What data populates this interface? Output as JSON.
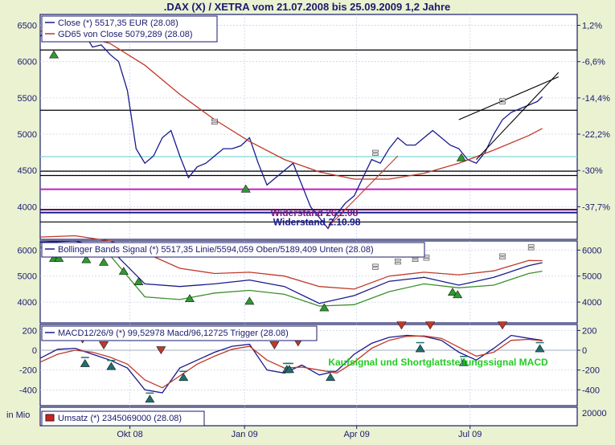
{
  "title": ".DAX (X) / XETRA vom 21.07.2008 bis 25.09.2009 1,2 Jahre",
  "xaxis": {
    "x_range": [
      "2008-07-21",
      "2009-09-25"
    ],
    "ticks": [
      {
        "date": "2008-10-01",
        "label": "Okt 08"
      },
      {
        "date": "2009-01-01",
        "label": "Jan 09"
      },
      {
        "date": "2009-04-01",
        "label": "Apr 09"
      },
      {
        "date": "2009-07-01",
        "label": "Jul 09"
      }
    ]
  },
  "chart_data": [
    {
      "type": "line",
      "panel": "price",
      "legend": [
        "Close (*) 5517,35 EUR (28.08)",
        "GD65 von Close 5079,289 (28.08)"
      ],
      "ylim": [
        3550,
        6650
      ],
      "left_ticks": [
        "6500",
        "6000",
        "5500",
        "5000",
        "4500",
        "4000"
      ],
      "left_tick_values": [
        6500,
        6000,
        5500,
        5000,
        4500,
        4000
      ],
      "right_ticks": [
        "1,2%",
        "-6,6%",
        "-14,4%",
        "-22,2%",
        "-30%",
        "-37,7%"
      ],
      "right_tick_values": [
        6500,
        6000,
        5500,
        5000,
        4500,
        4000
      ],
      "series": [
        {
          "name": "Close",
          "color": "#1a1a8c",
          "x": [
            "2008-07-21",
            "2008-07-28",
            "2008-08-04",
            "2008-08-11",
            "2008-08-18",
            "2008-08-25",
            "2008-09-01",
            "2008-09-08",
            "2008-09-15",
            "2008-09-22",
            "2008-09-29",
            "2008-10-06",
            "2008-10-13",
            "2008-10-20",
            "2008-10-27",
            "2008-11-03",
            "2008-11-10",
            "2008-11-17",
            "2008-11-24",
            "2008-12-01",
            "2008-12-08",
            "2008-12-15",
            "2008-12-22",
            "2008-12-29",
            "2009-01-05",
            "2009-01-12",
            "2009-01-19",
            "2009-01-26",
            "2009-02-02",
            "2009-02-09",
            "2009-02-16",
            "2009-02-23",
            "2009-03-02",
            "2009-03-09",
            "2009-03-16",
            "2009-03-23",
            "2009-03-30",
            "2009-04-06",
            "2009-04-13",
            "2009-04-20",
            "2009-04-27",
            "2009-05-04",
            "2009-05-11",
            "2009-05-18",
            "2009-05-25",
            "2009-06-01",
            "2009-06-08",
            "2009-06-15",
            "2009-06-22",
            "2009-06-29",
            "2009-07-06",
            "2009-07-13",
            "2009-07-20",
            "2009-07-27",
            "2009-08-03",
            "2009-08-10",
            "2009-08-17",
            "2009-08-24",
            "2009-08-28"
          ],
          "y": [
            6350,
            6450,
            6480,
            6500,
            6360,
            6400,
            6200,
            6230,
            6100,
            6000,
            5600,
            4800,
            4600,
            4700,
            4950,
            5050,
            4700,
            4400,
            4550,
            4600,
            4700,
            4800,
            4800,
            4840,
            4950,
            4600,
            4300,
            4400,
            4500,
            4600,
            4300,
            4000,
            3850,
            3700,
            3900,
            4050,
            4150,
            4400,
            4650,
            4600,
            4800,
            4950,
            4850,
            4850,
            4950,
            5050,
            4950,
            4850,
            4800,
            4650,
            4600,
            4750,
            5000,
            5200,
            5300,
            5350,
            5400,
            5450,
            5517
          ]
        },
        {
          "name": "GD65",
          "color": "#c0392b",
          "x": [
            "2008-07-21",
            "2008-08-18",
            "2008-09-15",
            "2008-10-13",
            "2008-11-10",
            "2008-12-08",
            "2009-01-05",
            "2009-02-02",
            "2009-03-02",
            "2009-03-30",
            "2009-04-27",
            "2009-05-25",
            "2009-06-22",
            "2009-07-20",
            "2009-08-17",
            "2009-08-28"
          ],
          "y": [
            6420,
            6380,
            6250,
            5950,
            5550,
            5200,
            4900,
            4650,
            4480,
            4380,
            4380,
            4460,
            4600,
            4780,
            4980,
            5079
          ]
        }
      ],
      "hlines": [
        {
          "y": 6160,
          "color": "#000000"
        },
        {
          "y": 5330,
          "color": "#000000"
        },
        {
          "y": 4690,
          "color": "#7fd6d6"
        },
        {
          "y": 4490,
          "color": "#000000"
        },
        {
          "y": 4430,
          "color": "#000000"
        },
        {
          "y": 4240,
          "color": "#c020c0"
        },
        {
          "y": 3960,
          "color": "#5a005a"
        },
        {
          "y": 3920,
          "color": "#1a1a8c"
        },
        {
          "y": 3790,
          "color": "#000000"
        }
      ],
      "trendlines": [
        {
          "x": [
            "2009-03-09",
            "2009-05-04"
          ],
          "y": [
            3720,
            4700
          ],
          "color": "#c0392b"
        },
        {
          "x": [
            "2009-07-06",
            "2009-09-10"
          ],
          "y": [
            4650,
            5850
          ],
          "color": "#000000"
        },
        {
          "x": [
            "2009-06-22",
            "2009-09-10"
          ],
          "y": [
            5200,
            5790
          ],
          "color": "#000000"
        }
      ],
      "annotations": [
        {
          "text": "Widerstand 26.2.08",
          "x": "2009-02-26",
          "y": 3925,
          "color": "#7a1a7a"
        },
        {
          "text": "Widerstand 2.10.98",
          "x": "2009-02-28",
          "y": 3800,
          "color": "#1a1a8c"
        }
      ],
      "buy_markers": [
        {
          "x": "2008-08-01",
          "y": 6100
        },
        {
          "x": "2009-01-02",
          "y": 4250
        },
        {
          "x": "2009-06-24",
          "y": 4680
        }
      ],
      "neutral_markers": [
        {
          "x": "2008-12-08",
          "y": 5170
        },
        {
          "x": "2009-04-16",
          "y": 4740
        },
        {
          "x": "2009-07-27",
          "y": 5450
        }
      ]
    },
    {
      "type": "line",
      "panel": "bollinger",
      "legend": [
        "Bollinger Bands Signal (*) 5517,35 Linie/5594,059 Oben/5189,409 Unten (28.08)"
      ],
      "ylim": [
        3200,
        6350
      ],
      "left_ticks": [
        "6000",
        "5000",
        "4000"
      ],
      "left_tick_values": [
        6000,
        5000,
        4000
      ],
      "right_ticks": [
        "6000",
        "5000",
        "4000"
      ],
      "right_tick_values": [
        6000,
        5000,
        4000
      ],
      "series": [
        {
          "name": "Linie",
          "color": "#1a1a8c",
          "x": [
            "2008-07-21",
            "2008-08-18",
            "2008-09-15",
            "2008-10-13",
            "2008-11-10",
            "2008-12-08",
            "2009-01-05",
            "2009-02-02",
            "2009-03-02",
            "2009-03-30",
            "2009-04-27",
            "2009-05-25",
            "2009-06-22",
            "2009-07-20",
            "2009-08-17",
            "2009-08-28"
          ],
          "y": [
            6300,
            6350,
            6050,
            4700,
            4600,
            4700,
            4850,
            4600,
            3950,
            4250,
            4800,
            4950,
            4650,
            4950,
            5400,
            5517
          ]
        },
        {
          "name": "Oben",
          "color": "#c0392b",
          "x": [
            "2008-07-21",
            "2008-08-18",
            "2008-09-15",
            "2008-10-13",
            "2008-11-10",
            "2008-12-08",
            "2009-01-05",
            "2009-02-02",
            "2009-03-02",
            "2009-03-30",
            "2009-04-27",
            "2009-05-25",
            "2009-06-22",
            "2009-07-20",
            "2009-08-17",
            "2009-08-28"
          ],
          "y": [
            6500,
            6550,
            6350,
            5900,
            5300,
            5100,
            5150,
            5000,
            4600,
            4500,
            5000,
            5150,
            5050,
            5200,
            5600,
            5594
          ]
        },
        {
          "name": "Unten",
          "color": "#3c8f2c",
          "x": [
            "2008-07-21",
            "2008-08-18",
            "2008-09-15",
            "2008-10-13",
            "2008-11-10",
            "2008-12-08",
            "2009-01-05",
            "2009-02-02",
            "2009-03-02",
            "2009-03-30",
            "2009-04-27",
            "2009-05-25",
            "2009-06-22",
            "2009-07-20",
            "2009-08-17",
            "2009-08-28"
          ],
          "y": [
            6100,
            6150,
            5800,
            4200,
            4100,
            4350,
            4450,
            4300,
            3850,
            3900,
            4400,
            4700,
            4550,
            4650,
            5100,
            5189
          ]
        }
      ],
      "buy_markers": [
        {
          "x": "2008-08-01",
          "y": 5700
        },
        {
          "x": "2008-08-05",
          "y": 5700
        },
        {
          "x": "2008-08-27",
          "y": 5650
        },
        {
          "x": "2008-09-10",
          "y": 5550
        },
        {
          "x": "2008-09-26",
          "y": 5200
        },
        {
          "x": "2008-10-08",
          "y": 4800
        },
        {
          "x": "2008-11-18",
          "y": 4150
        },
        {
          "x": "2009-01-05",
          "y": 4050
        },
        {
          "x": "2009-03-06",
          "y": 3800
        },
        {
          "x": "2009-06-17",
          "y": 4400
        },
        {
          "x": "2009-06-21",
          "y": 4300
        }
      ],
      "neutral_markers": [
        {
          "x": "2009-04-16",
          "y": 5350
        },
        {
          "x": "2009-05-04",
          "y": 5550
        },
        {
          "x": "2009-05-18",
          "y": 5650
        },
        {
          "x": "2009-05-27",
          "y": 5700
        },
        {
          "x": "2009-07-27",
          "y": 5750
        },
        {
          "x": "2009-08-19",
          "y": 6100
        }
      ]
    },
    {
      "type": "line",
      "panel": "macd",
      "legend": [
        "MACD12/26/9 (*) 99,52978 Macd/96,12725 Trigger (28.08)"
      ],
      "ylim": [
        -560,
        260
      ],
      "left_ticks": [
        "200",
        "0",
        "-200",
        "-400"
      ],
      "left_tick_values": [
        200,
        0,
        -200,
        -400
      ],
      "right_ticks": [
        "200",
        "0",
        "-200",
        "-400"
      ],
      "right_tick_values": [
        200,
        0,
        -200,
        -400
      ],
      "series": [
        {
          "name": "Macd",
          "color": "#1a1a8c",
          "x": [
            "2008-07-21",
            "2008-08-04",
            "2008-08-18",
            "2008-09-01",
            "2008-09-15",
            "2008-09-29",
            "2008-10-13",
            "2008-10-27",
            "2008-11-10",
            "2008-11-24",
            "2008-12-08",
            "2008-12-22",
            "2009-01-05",
            "2009-01-19",
            "2009-02-02",
            "2009-02-16",
            "2009-03-02",
            "2009-03-16",
            "2009-03-30",
            "2009-04-13",
            "2009-04-27",
            "2009-05-11",
            "2009-05-25",
            "2009-06-08",
            "2009-06-22",
            "2009-07-06",
            "2009-07-20",
            "2009-08-03",
            "2009-08-17",
            "2009-08-28"
          ],
          "y": [
            -80,
            10,
            20,
            -40,
            -100,
            -180,
            -400,
            -430,
            -180,
            -100,
            -20,
            40,
            60,
            -200,
            -230,
            -150,
            -250,
            -210,
            -40,
            70,
            130,
            150,
            140,
            100,
            -20,
            -100,
            20,
            150,
            120,
            100
          ]
        },
        {
          "name": "Trigger",
          "color": "#c0392b",
          "x": [
            "2008-07-21",
            "2008-08-04",
            "2008-08-18",
            "2008-09-01",
            "2008-09-15",
            "2008-09-29",
            "2008-10-13",
            "2008-10-27",
            "2008-11-10",
            "2008-11-24",
            "2008-12-08",
            "2008-12-22",
            "2009-01-05",
            "2009-01-19",
            "2009-02-02",
            "2009-02-16",
            "2009-03-02",
            "2009-03-16",
            "2009-03-30",
            "2009-04-13",
            "2009-04-27",
            "2009-05-11",
            "2009-05-25",
            "2009-06-08",
            "2009-06-22",
            "2009-07-06",
            "2009-07-20",
            "2009-08-03",
            "2009-08-17",
            "2009-08-28"
          ],
          "y": [
            -120,
            -40,
            0,
            -20,
            -70,
            -140,
            -300,
            -380,
            -260,
            -140,
            -60,
            10,
            40,
            -100,
            -180,
            -170,
            -200,
            -230,
            -120,
            20,
            100,
            140,
            145,
            120,
            30,
            -60,
            -20,
            100,
            110,
            96
          ]
        }
      ],
      "sell_markers": [
        {
          "x": "2008-08-02",
          "y": 140
        },
        {
          "x": "2008-08-24",
          "y": 110
        },
        {
          "x": "2008-09-10",
          "y": 50
        },
        {
          "x": "2008-10-26",
          "y": 0
        },
        {
          "x": "2008-12-31",
          "y": 150
        },
        {
          "x": "2009-01-25",
          "y": 50
        },
        {
          "x": "2009-02-13",
          "y": 80
        },
        {
          "x": "2009-05-07",
          "y": 250
        },
        {
          "x": "2009-05-30",
          "y": 250
        },
        {
          "x": "2009-07-27",
          "y": 250
        }
      ],
      "buy_markers": [
        {
          "x": "2008-08-26",
          "y": -130
        },
        {
          "x": "2008-09-16",
          "y": -160
        },
        {
          "x": "2008-10-17",
          "y": -490
        },
        {
          "x": "2008-11-13",
          "y": -270
        },
        {
          "x": "2009-02-04",
          "y": -190
        },
        {
          "x": "2009-02-06",
          "y": -190
        },
        {
          "x": "2009-03-11",
          "y": -270
        },
        {
          "x": "2009-05-22",
          "y": 20
        },
        {
          "x": "2009-06-26",
          "y": -120
        },
        {
          "x": "2009-08-26",
          "y": 20
        }
      ],
      "annotation": "Kaufsignal und Shortglattstellungssignal MACD"
    },
    {
      "type": "bar",
      "panel": "volume",
      "unit_label": "in Mio",
      "legend": [
        "Umsatz (*) 2345069000 (28.08)"
      ],
      "right_ticks": [
        "20000"
      ]
    }
  ]
}
